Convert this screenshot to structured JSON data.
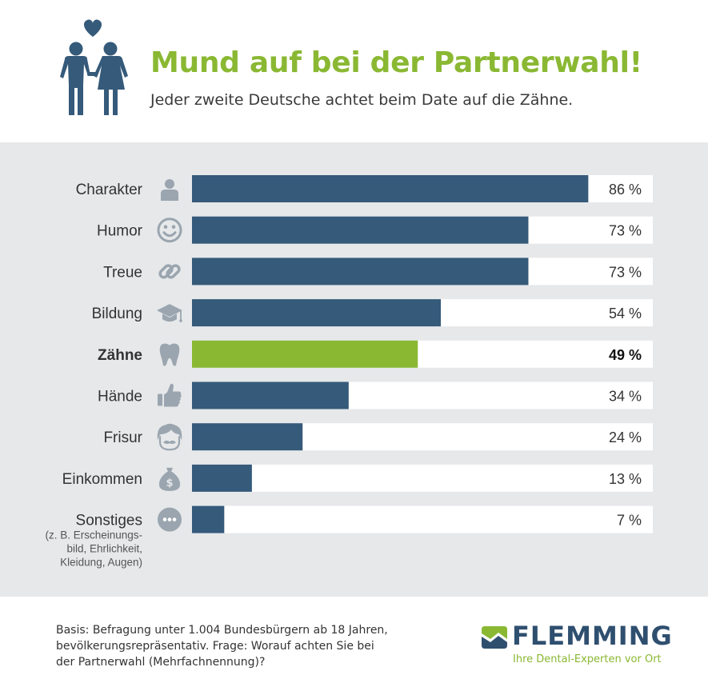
{
  "header": {
    "title": "Mund auf bei der Partnerwahl!",
    "subtitle": "Jeder zweite Deutsche achtet beim Date auf die Zähne.",
    "icon": "couple-with-heart-icon"
  },
  "colors": {
    "title_green": "#8ab833",
    "bar_blue": "#355a7a",
    "bar_highlight": "#8ab833",
    "track": "#ffffff",
    "panel_bg": "#e6e8ea",
    "icon_gray": "#9aa5af",
    "logo_blue": "#2f4f6f"
  },
  "chart_data": {
    "type": "bar",
    "orientation": "horizontal",
    "xlim": [
      0,
      100
    ],
    "categories": [
      "Charakter",
      "Humor",
      "Treue",
      "Bildung",
      "Zähne",
      "Hände",
      "Frisur",
      "Einkommen",
      "Sonstiges"
    ],
    "values": [
      86,
      73,
      73,
      54,
      49,
      34,
      24,
      13,
      7
    ],
    "value_labels": [
      "86 %",
      "73 %",
      "73 %",
      "54 %",
      "49 %",
      "34 %",
      "24 %",
      "13 %",
      "7 %"
    ],
    "icons": [
      "person-icon",
      "smiley-icon",
      "link-icon",
      "graduation-cap-icon",
      "tooth-icon",
      "thumbs-up-icon",
      "hair-mustache-icon",
      "money-bag-icon",
      "more-dots-icon"
    ],
    "highlight_index": 4,
    "category_notes": [
      "",
      "",
      "",
      "",
      "",
      "",
      "",
      "",
      "(z. B. Erscheinungs-\nbild, Ehrlichkeit,\nKleidung, Augen)"
    ]
  },
  "footer": {
    "note": "Basis: Befragung unter 1.004 Bundesbürgern ab 18 Jahren, bevölkerungsrepräsentativ. Frage: Worauf achten Sie bei der Partnerwahl (Mehrfachnennung)?",
    "logo_name": "FLEMMING",
    "logo_tagline": "Ihre Dental-Experten vor Ort"
  }
}
